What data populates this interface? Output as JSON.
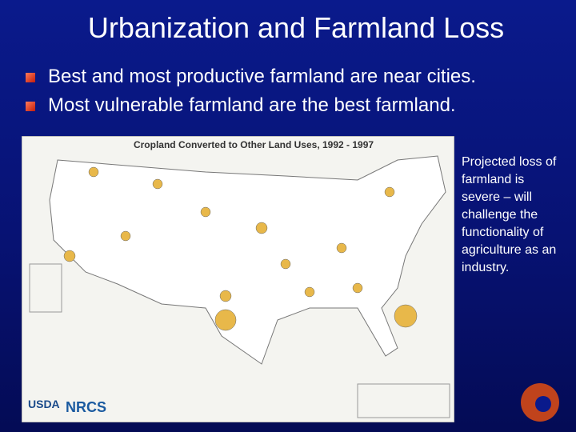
{
  "slide": {
    "title": "Urbanization and Farmland Loss",
    "bullets": [
      "Best and most productive farmland are near cities.",
      "Most vulnerable farmland are the best farmland."
    ],
    "figure": {
      "title": "Cropland Converted to Other Land Uses, 1992 - 1997",
      "logos": [
        "USDA",
        "NRCS"
      ]
    },
    "side_text": [
      "Projected loss of",
      "farmland is",
      "severe – will",
      "challenge the",
      "functionality of",
      "agriculture as an",
      "industry."
    ]
  }
}
